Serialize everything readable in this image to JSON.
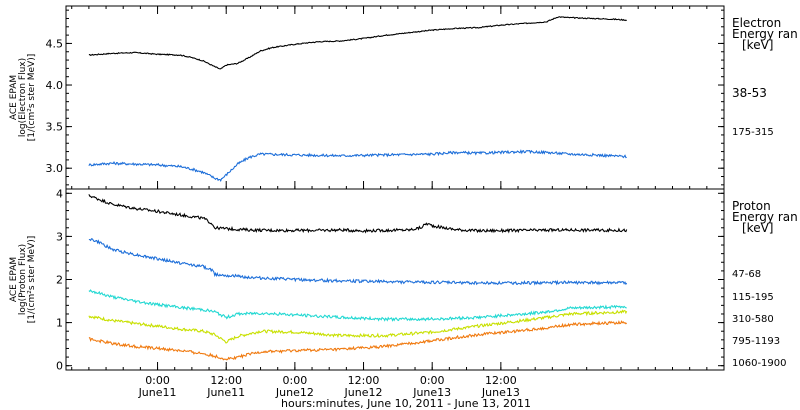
{
  "chart_data": [
    {
      "type": "line",
      "ylabel_lines": [
        "ACE EPAM",
        "log(Electron Flux)",
        "[1/(cm²s ster MeV)]"
      ],
      "ylim": [
        2.75,
        4.95
      ],
      "yticks": [
        3.0,
        3.5,
        4.0,
        4.5
      ],
      "ytick_labels": [
        "3.0",
        "3.5",
        "4.0",
        "4.5"
      ],
      "legend_title": [
        "Electron",
        "Energy ran",
        "[keV]"
      ],
      "grid": false,
      "series": [
        {
          "name": "38-53",
          "color": "#000000",
          "points": [
            [
              -12,
              4.36
            ],
            [
              -8,
              4.38
            ],
            [
              -4,
              4.39
            ],
            [
              0,
              4.37
            ],
            [
              4,
              4.36
            ],
            [
              6,
              4.33
            ],
            [
              8,
              4.29
            ],
            [
              10,
              4.22
            ],
            [
              11,
              4.19
            ],
            [
              12,
              4.24
            ],
            [
              14,
              4.26
            ],
            [
              16,
              4.33
            ],
            [
              18,
              4.41
            ],
            [
              20,
              4.45
            ],
            [
              24,
              4.49
            ],
            [
              28,
              4.52
            ],
            [
              32,
              4.53
            ],
            [
              36,
              4.56
            ],
            [
              40,
              4.6
            ],
            [
              44,
              4.63
            ],
            [
              48,
              4.66
            ],
            [
              52,
              4.68
            ],
            [
              56,
              4.69
            ],
            [
              60,
              4.72
            ],
            [
              64,
              4.74
            ],
            [
              68,
              4.76
            ],
            [
              70,
              4.82
            ],
            [
              72,
              4.81
            ],
            [
              76,
              4.8
            ],
            [
              80,
              4.79
            ],
            [
              82,
              4.78
            ]
          ]
        },
        {
          "name": "175-315",
          "color": "#1e6fd9",
          "points": [
            [
              -12,
              3.04
            ],
            [
              -8,
              3.06
            ],
            [
              -4,
              3.05
            ],
            [
              0,
              3.04
            ],
            [
              4,
              3.02
            ],
            [
              6,
              2.99
            ],
            [
              8,
              2.95
            ],
            [
              10,
              2.88
            ],
            [
              11,
              2.86
            ],
            [
              12,
              2.92
            ],
            [
              14,
              3.05
            ],
            [
              16,
              3.13
            ],
            [
              18,
              3.17
            ],
            [
              24,
              3.16
            ],
            [
              32,
              3.15
            ],
            [
              40,
              3.16
            ],
            [
              48,
              3.17
            ],
            [
              52,
              3.19
            ],
            [
              56,
              3.18
            ],
            [
              60,
              3.19
            ],
            [
              64,
              3.2
            ],
            [
              68,
              3.19
            ],
            [
              72,
              3.17
            ],
            [
              76,
              3.16
            ],
            [
              82,
              3.14
            ]
          ]
        }
      ]
    },
    {
      "type": "line",
      "ylabel_lines": [
        "ACE EPAM",
        "log(Proton Flux)",
        "[1/(cm²s ster MeV)]"
      ],
      "ylim": [
        -0.1,
        4.1
      ],
      "yticks": [
        0,
        1,
        2,
        3,
        4
      ],
      "ytick_labels": [
        "0",
        "1",
        "2",
        "3",
        "4"
      ],
      "legend_title": [
        "Proton",
        "Energy ran",
        "[keV]"
      ],
      "grid": false,
      "series": [
        {
          "name": "47-68",
          "color": "#000000",
          "points": [
            [
              -12,
              3.95
            ],
            [
              -10,
              3.85
            ],
            [
              -8,
              3.75
            ],
            [
              -4,
              3.65
            ],
            [
              0,
              3.58
            ],
            [
              4,
              3.5
            ],
            [
              8,
              3.42
            ],
            [
              9.5,
              3.3
            ],
            [
              10,
              3.2
            ],
            [
              12,
              3.18
            ],
            [
              16,
              3.15
            ],
            [
              20,
              3.14
            ],
            [
              28,
              3.14
            ],
            [
              32,
              3.15
            ],
            [
              36,
              3.13
            ],
            [
              40,
              3.14
            ],
            [
              44,
              3.15
            ],
            [
              46,
              3.2
            ],
            [
              47,
              3.3
            ],
            [
              48,
              3.25
            ],
            [
              50,
              3.2
            ],
            [
              52,
              3.16
            ],
            [
              56,
              3.13
            ],
            [
              64,
              3.14
            ],
            [
              72,
              3.15
            ],
            [
              82,
              3.14
            ]
          ]
        },
        {
          "name": "115-195",
          "color": "#1e6fd9",
          "points": [
            [
              -12,
              2.95
            ],
            [
              -10,
              2.85
            ],
            [
              -8,
              2.7
            ],
            [
              -4,
              2.58
            ],
            [
              0,
              2.48
            ],
            [
              4,
              2.38
            ],
            [
              8,
              2.3
            ],
            [
              9.5,
              2.22
            ],
            [
              10,
              2.12
            ],
            [
              12,
              2.1
            ],
            [
              16,
              2.05
            ],
            [
              20,
              2.02
            ],
            [
              28,
              1.98
            ],
            [
              36,
              1.96
            ],
            [
              44,
              1.94
            ],
            [
              52,
              1.93
            ],
            [
              56,
              1.92
            ],
            [
              64,
              1.92
            ],
            [
              72,
              1.93
            ],
            [
              82,
              1.92
            ]
          ]
        },
        {
          "name": "310-580",
          "color": "#22d8d2",
          "points": [
            [
              -12,
              1.75
            ],
            [
              -8,
              1.6
            ],
            [
              -4,
              1.5
            ],
            [
              0,
              1.42
            ],
            [
              4,
              1.35
            ],
            [
              8,
              1.3
            ],
            [
              10,
              1.25
            ],
            [
              12,
              1.12
            ],
            [
              14,
              1.2
            ],
            [
              18,
              1.22
            ],
            [
              24,
              1.18
            ],
            [
              32,
              1.12
            ],
            [
              40,
              1.08
            ],
            [
              48,
              1.08
            ],
            [
              56,
              1.12
            ],
            [
              64,
              1.2
            ],
            [
              68,
              1.25
            ],
            [
              72,
              1.33
            ],
            [
              76,
              1.35
            ],
            [
              82,
              1.37
            ]
          ]
        },
        {
          "name": "795-1193",
          "color": "#c8e000",
          "points": [
            [
              -12,
              1.15
            ],
            [
              -8,
              1.05
            ],
            [
              -4,
              0.98
            ],
            [
              0,
              0.92
            ],
            [
              4,
              0.85
            ],
            [
              8,
              0.8
            ],
            [
              10,
              0.72
            ],
            [
              12,
              0.55
            ],
            [
              14,
              0.68
            ],
            [
              18,
              0.8
            ],
            [
              24,
              0.78
            ],
            [
              32,
              0.7
            ],
            [
              40,
              0.7
            ],
            [
              48,
              0.78
            ],
            [
              56,
              0.92
            ],
            [
              64,
              1.05
            ],
            [
              68,
              1.12
            ],
            [
              72,
              1.2
            ],
            [
              76,
              1.22
            ],
            [
              82,
              1.25
            ]
          ]
        },
        {
          "name": "1060-1900",
          "color": "#f07a10",
          "points": [
            [
              -12,
              0.62
            ],
            [
              -8,
              0.52
            ],
            [
              -4,
              0.45
            ],
            [
              0,
              0.4
            ],
            [
              4,
              0.35
            ],
            [
              8,
              0.28
            ],
            [
              10,
              0.22
            ],
            [
              12,
              0.15
            ],
            [
              14,
              0.2
            ],
            [
              18,
              0.32
            ],
            [
              24,
              0.35
            ],
            [
              32,
              0.38
            ],
            [
              40,
              0.45
            ],
            [
              48,
              0.58
            ],
            [
              56,
              0.72
            ],
            [
              64,
              0.82
            ],
            [
              68,
              0.88
            ],
            [
              72,
              0.95
            ],
            [
              76,
              0.98
            ],
            [
              82,
              1.0
            ]
          ]
        }
      ]
    }
  ],
  "x_axis": {
    "range_hours": [
      -16,
      99
    ],
    "ticks": [
      {
        "hour": 0,
        "time": "0:00",
        "date": "June11"
      },
      {
        "hour": 12,
        "time": "12:00",
        "date": "June11"
      },
      {
        "hour": 24,
        "time": "0:00",
        "date": "June12"
      },
      {
        "hour": 36,
        "time": "12:00",
        "date": "June12"
      },
      {
        "hour": 48,
        "time": "0:00",
        "date": "June13"
      },
      {
        "hour": 60,
        "time": "12:00",
        "date": "June13"
      }
    ],
    "minor_every_hours": 3,
    "title": "hours:minutes, June 10, 2011 - June 13, 2011"
  }
}
